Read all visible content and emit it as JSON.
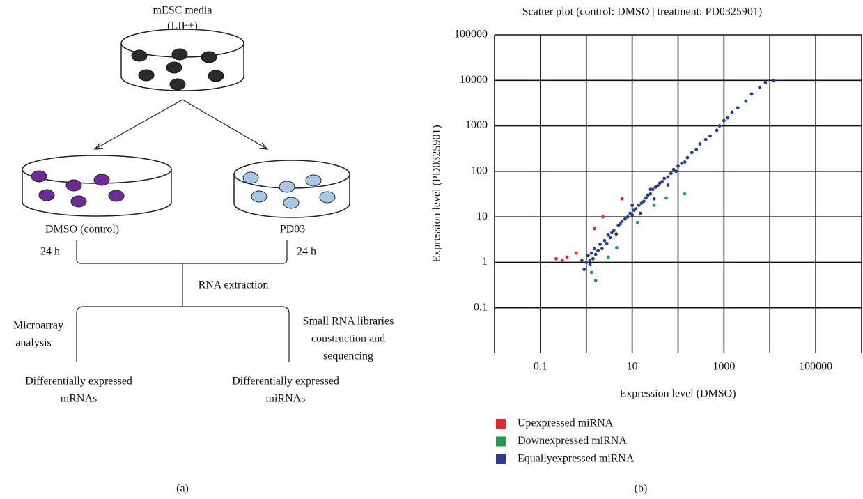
{
  "panel_a": {
    "top_label": [
      "mESC media",
      "(LIF+)"
    ],
    "left_label": "DMSO (control)",
    "right_label": "PD03",
    "left_time": "24 h",
    "right_time": "24 h",
    "extraction": "RNA extraction",
    "left_method": [
      "Microarray",
      "analysis"
    ],
    "right_method": [
      "Small RNA libraries",
      "construction and",
      "sequencing"
    ],
    "left_result": [
      "Differentially expressed",
      "mRNAs"
    ],
    "right_result": [
      "Differentially expressed",
      "miRNAs"
    ]
  },
  "captions": [
    "(a)",
    "(b)"
  ],
  "chart_data": {
    "type": "scatter",
    "title": "Scatter plot (control: DMSO | treatment: PD0325901)",
    "xlabel": "Expression level (DMSO)",
    "ylabel": "Expression level (PD0325901)",
    "xscale": "log",
    "yscale": "log",
    "xlim": [
      0.01,
      1000000
    ],
    "ylim": [
      0.01,
      100000
    ],
    "xticks": [
      0.1,
      10,
      1000,
      100000
    ],
    "xgrid": [
      1,
      100,
      10000,
      1000000
    ],
    "yticks": [
      0.1,
      1,
      10,
      100,
      1000,
      10000,
      100000
    ],
    "grid": true,
    "legend": "below-left",
    "series": [
      {
        "name": "Upexpressed miRNA",
        "color": "#e8262a",
        "x": [
          0.22,
          0.38,
          0.6,
          2.3,
          6,
          0.3,
          1.5
        ],
        "values": [
          1.2,
          1.3,
          1.6,
          10,
          25,
          1.1,
          5.5
        ]
      },
      {
        "name": "Downexpressed miRNA",
        "color": "#1f9e4a",
        "x": [
          1.3,
          1.6,
          3,
          4.6,
          13,
          55,
          140,
          30
        ],
        "values": [
          0.6,
          0.4,
          1.3,
          2.1,
          7.5,
          26,
          32,
          18
        ]
      },
      {
        "name": "Equallyexpressed miRNA",
        "color": "#253e8f",
        "x": [
          0.9,
          1.0,
          1.1,
          1.2,
          1.3,
          1.4,
          1.5,
          1.6,
          1.8,
          2.0,
          2.2,
          2.5,
          2.8,
          3.0,
          3.3,
          3.6,
          4.0,
          4.5,
          5.0,
          5.5,
          6,
          7,
          8,
          9,
          10,
          11,
          12,
          14,
          16,
          18,
          20,
          22,
          25,
          28,
          32,
          36,
          40,
          45,
          50,
          60,
          70,
          80,
          90,
          100,
          120,
          140,
          160,
          200,
          250,
          300,
          400,
          500,
          700,
          800,
          1000,
          1200,
          1500,
          2000,
          3000,
          4000,
          6000,
          8000,
          12000,
          1.2,
          0.8,
          15,
          30,
          60,
          25,
          10
        ],
        "values": [
          0.7,
          1.0,
          1.4,
          0.9,
          1.6,
          1.2,
          2.0,
          1.5,
          1.8,
          2.5,
          2.0,
          3.0,
          2.6,
          4.0,
          3.5,
          4.5,
          5.0,
          4.2,
          6.5,
          7.0,
          8,
          9,
          10,
          12,
          11,
          14,
          15,
          18,
          20,
          22,
          26,
          30,
          32,
          40,
          45,
          48,
          55,
          60,
          70,
          75,
          90,
          110,
          100,
          130,
          150,
          160,
          200,
          260,
          300,
          400,
          500,
          600,
          800,
          1000,
          1300,
          1500,
          2000,
          2500,
          3500,
          5000,
          7000,
          9000,
          10000,
          1.1,
          1.1,
          12,
          25,
          50,
          40,
          18
        ]
      }
    ]
  }
}
